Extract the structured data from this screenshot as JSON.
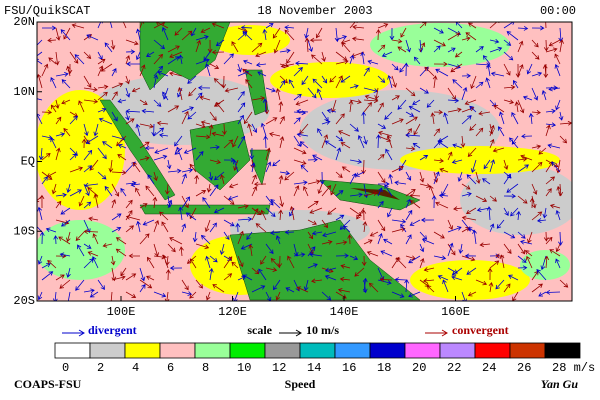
{
  "header": {
    "left": "FSU/QuikSCAT",
    "center": "18 November 2003",
    "right": "00:00"
  },
  "map": {
    "lat_labels": [
      "20N",
      "10N",
      "EQ",
      "10S",
      "20S"
    ],
    "lon_labels": [
      "100E",
      "120E",
      "140E",
      "160E"
    ]
  },
  "legend": {
    "divergent": "divergent",
    "scale": "scale",
    "scale_value": "10 m/s",
    "convergent": "convergent"
  },
  "colorbar": {
    "ticks": [
      0,
      2,
      4,
      6,
      8,
      10,
      12,
      14,
      16,
      18,
      20,
      22,
      24,
      26,
      {
        "value": 28,
        "label": "28 m/s"
      }
    ],
    "colors": [
      "#ffffff",
      "#cccccc",
      "#ffff00",
      "#ffc0c0",
      "#99ff99",
      "#00ee00",
      "#999999",
      "#00bbbb",
      "#3399ff",
      "#0000cc",
      "#ff66ff",
      "#bb88ff",
      "#ff0000",
      "#cc3300",
      "#000000"
    ],
    "label": "Speed"
  },
  "footer": {
    "left": "COAPS-FSU",
    "right": "Yan Gu"
  }
}
